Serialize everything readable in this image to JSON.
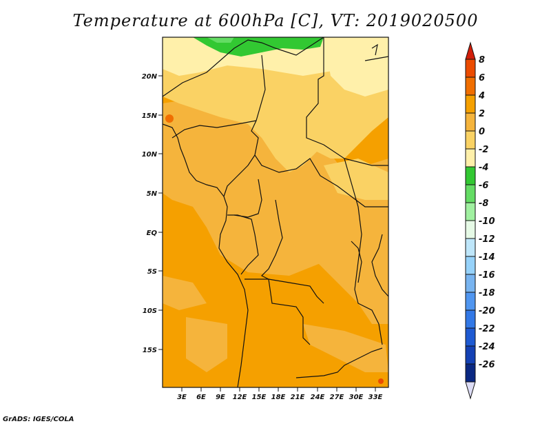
{
  "title": "Temperature at 600hPa [C], VT: 2019020500",
  "footer": "GrADS: IGES/COLA",
  "map": {
    "lat_labels": [
      "20N",
      "15N",
      "10N",
      "5N",
      "EQ",
      "5S",
      "10S",
      "15S"
    ],
    "lon_labels": [
      "3E",
      "6E",
      "9E",
      "12E",
      "15E",
      "18E",
      "21E",
      "24E",
      "27E",
      "30E",
      "33E"
    ],
    "extent": {
      "lon_min": 0,
      "lon_max": 35,
      "lat_min": -20,
      "lat_max": 25
    }
  },
  "colorbar": {
    "labels": [
      "8",
      "6",
      "4",
      "2",
      "0",
      "-2",
      "-4",
      "-6",
      "-8",
      "-10",
      "-12",
      "-14",
      "-16",
      "-18",
      "-20",
      "-22",
      "-24",
      "-26"
    ],
    "colors": [
      "#d21e0a",
      "#eb4b00",
      "#f06e00",
      "#f5a000",
      "#f5b43c",
      "#fad264",
      "#fff0aa",
      "#32c832",
      "#64dc64",
      "#a0f0a0",
      "#e6fae6",
      "#bee6fa",
      "#96d2fa",
      "#78b4f0",
      "#5096f0",
      "#3278e6",
      "#1e5ad2",
      "#1441b4",
      "#0a2882",
      "#dcdcf5"
    ]
  }
}
